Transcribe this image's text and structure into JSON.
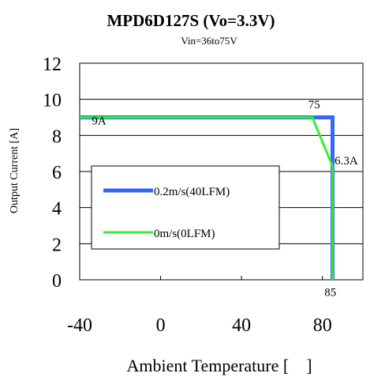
{
  "chart_data": {
    "type": "line",
    "title": "MPD6D127S  (Vo=3.3V)",
    "subtitle": "Vin=36to75V",
    "xlabel": "Ambient Temperature [　]",
    "ylabel": "Output Current [A]",
    "xlim": [
      -40,
      100
    ],
    "ylim": [
      0,
      12
    ],
    "xticks": [
      -40,
      0,
      40,
      80
    ],
    "xtick_labels": [
      "-40",
      "0",
      "40",
      "80"
    ],
    "yticks": [
      0,
      2,
      4,
      6,
      8,
      10,
      12
    ],
    "ytick_labels": [
      "0",
      "2",
      "4",
      "6",
      "8",
      "10",
      "12"
    ],
    "grid": "horizontal",
    "legend_position": "center-left",
    "series": [
      {
        "name": "0.2m/s(40LFM)",
        "color": "#3366ff",
        "x": [
          -40,
          85,
          85
        ],
        "y": [
          9,
          9,
          0
        ]
      },
      {
        "name": "0m/s(0LFM)",
        "color": "#33ee33",
        "x": [
          -40,
          75,
          85,
          85
        ],
        "y": [
          9,
          9,
          6.3,
          0
        ]
      }
    ],
    "annotations": [
      {
        "text": "9A",
        "x": -34,
        "y": 8.6
      },
      {
        "text": "75",
        "x": 73,
        "y": 9.5
      },
      {
        "text": "6.3A",
        "x": 86,
        "y": 6.4
      },
      {
        "text": "85",
        "x": 81,
        "y": -0.9
      }
    ]
  }
}
